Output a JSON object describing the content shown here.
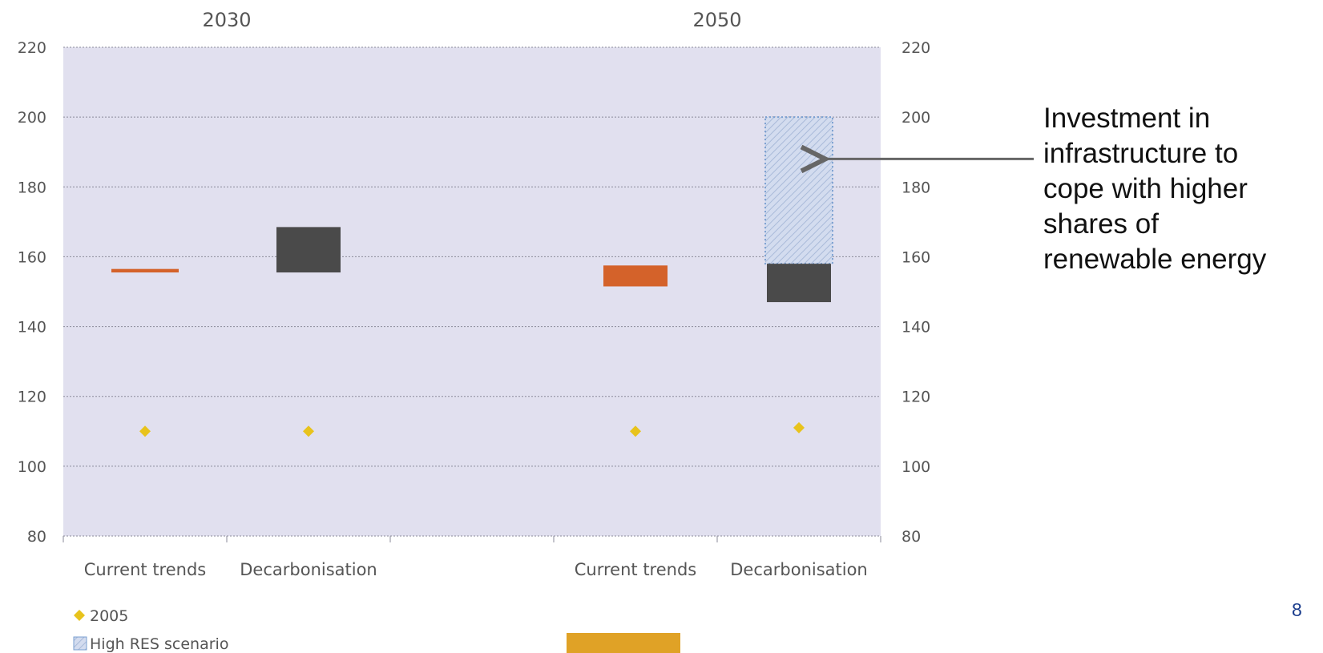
{
  "chart_data": {
    "type": "floating-bar",
    "ylim": [
      80,
      220
    ],
    "yticks": [
      80,
      100,
      120,
      140,
      160,
      180,
      200,
      220
    ],
    "groups": [
      {
        "label": "2030",
        "categories": [
          {
            "label": "Current trends",
            "range": [
              155.5,
              156.5
            ],
            "marker_2005": 110
          },
          {
            "label": "Decarbonisation",
            "range": [
              155.5,
              168.5
            ],
            "marker_2005": 110
          }
        ]
      },
      {
        "label": "2050",
        "categories": [
          {
            "label": "Current trends",
            "range": [
              151.5,
              157.5
            ],
            "marker_2005": 110
          },
          {
            "label": "Decarbonisation",
            "range": [
              147,
              158
            ],
            "high_res_range": [
              158,
              200
            ],
            "marker_2005": 111
          }
        ]
      }
    ],
    "colors": {
      "current_trends": "#d4622a",
      "decarbonisation": "#4a4a4a",
      "high_res": "#c8d4ea",
      "marker_2005": "#e8c31c",
      "plot_bg": "#e1e0ef"
    },
    "legend": {
      "placement": "bottom-left",
      "entries": [
        {
          "label": "2005",
          "marker": "diamond"
        },
        {
          "label": "High RES scenario",
          "marker": "hatched"
        }
      ]
    },
    "annotation": {
      "text": "Investment in infrastructure to cope with higher shares of renewable energy",
      "lines": [
        "Investment in",
        "infrastructure to",
        "cope with higher",
        "shares of",
        "renewable energy"
      ],
      "target_value": 188
    }
  },
  "page_number": "8"
}
